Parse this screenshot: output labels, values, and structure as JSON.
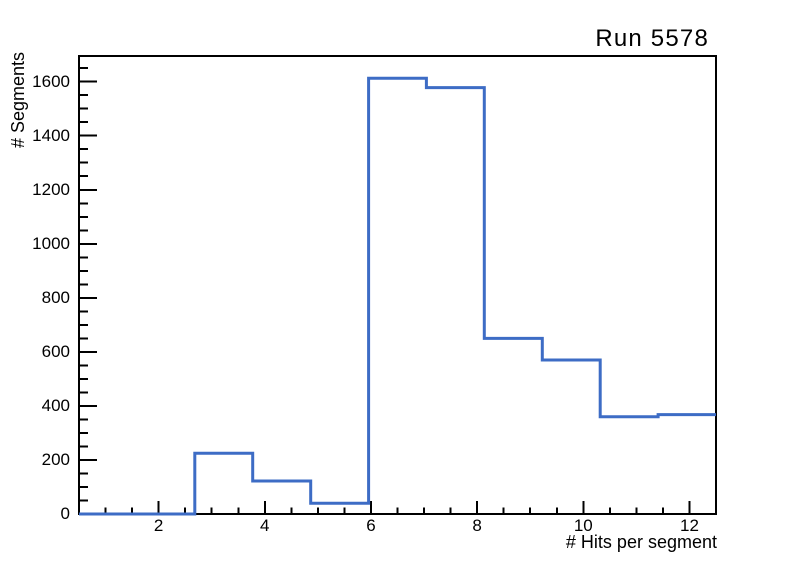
{
  "window": {
    "background": "#ffffff"
  },
  "chart_data": {
    "type": "step-histogram",
    "title": "Run 5578",
    "xlabel": "# Hits per segment",
    "ylabel": "# Segments",
    "xlim": [
      0.5,
      12.5
    ],
    "ylim": [
      0,
      1695
    ],
    "bin_edges": [
      0.5,
      1.591,
      2.682,
      3.773,
      4.864,
      5.955,
      7.045,
      8.136,
      9.227,
      10.318,
      11.409,
      12.5
    ],
    "values": [
      0,
      0,
      225,
      122,
      40,
      1613,
      1578,
      650,
      570,
      360,
      368
    ],
    "x_major_ticks": [
      2,
      4,
      6,
      8,
      10,
      12
    ],
    "x_minor_step": 0.5,
    "y_major_ticks": [
      0,
      200,
      400,
      600,
      800,
      1000,
      1200,
      1400,
      1600
    ],
    "y_minor_step": 50,
    "grid": false,
    "legend": false,
    "line_color": "#3d6cc5",
    "axis_color": "#000000",
    "background": "#ffffff"
  }
}
